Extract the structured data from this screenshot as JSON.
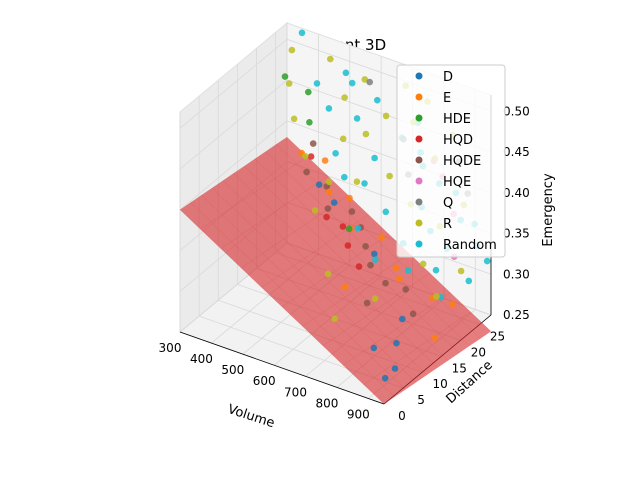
{
  "chart_data": {
    "type": "scatter",
    "subtype": "3d-scatter-with-surface",
    "title": "Pareto Front 3D",
    "xlabel": "Volume",
    "ylabel": "Distance",
    "zlabel": "Emergency",
    "xlim": [
      300,
      950
    ],
    "ylim": [
      0,
      28
    ],
    "zlim": [
      0.25,
      0.52
    ],
    "xticks": [
      300,
      400,
      500,
      600,
      700,
      800,
      900
    ],
    "yticks": [
      0,
      5,
      10,
      15,
      20,
      25
    ],
    "zticks": [
      0.25,
      0.3,
      0.35,
      0.4,
      0.45,
      0.5
    ],
    "grid": true,
    "legend_position": "top-right",
    "series": [
      {
        "name": "D",
        "color": "#1f77b4",
        "points": [
          [
            905,
            4,
            0.26
          ],
          [
            912,
            6,
            0.265
          ],
          [
            880,
            9,
            0.28
          ],
          [
            850,
            13,
            0.29
          ],
          [
            700,
            18,
            0.33
          ],
          [
            560,
            19,
            0.37
          ],
          [
            500,
            20,
            0.38
          ],
          [
            820,
            8,
            0.27
          ]
        ]
      },
      {
        "name": "E",
        "color": "#ff7f0e",
        "points": [
          [
            930,
            15,
            0.27
          ],
          [
            860,
            20,
            0.29
          ],
          [
            780,
            18,
            0.31
          ],
          [
            720,
            22,
            0.3
          ],
          [
            650,
            24,
            0.32
          ],
          [
            600,
            20,
            0.34
          ],
          [
            560,
            23,
            0.36
          ],
          [
            520,
            21,
            0.37
          ],
          [
            470,
            24,
            0.39
          ],
          [
            420,
            22,
            0.4
          ],
          [
            680,
            12,
            0.31
          ],
          [
            900,
            22,
            0.28
          ]
        ]
      },
      {
        "name": "HDE",
        "color": "#2ca02c",
        "points": [
          [
            330,
            25,
            0.47
          ],
          [
            380,
            27,
            0.45
          ],
          [
            420,
            24,
            0.43
          ],
          [
            620,
            18,
            0.35
          ]
        ]
      },
      {
        "name": "HQD",
        "color": "#d62728",
        "points": [
          [
            640,
            16,
            0.34
          ],
          [
            600,
            18,
            0.35
          ],
          [
            560,
            17,
            0.36
          ],
          [
            700,
            14,
            0.33
          ],
          [
            450,
            22,
            0.4
          ]
        ]
      },
      {
        "name": "HQDE",
        "color": "#8c564b",
        "points": [
          [
            800,
            18,
            0.3
          ],
          [
            760,
            16,
            0.31
          ],
          [
            700,
            17,
            0.32
          ],
          [
            660,
            19,
            0.33
          ],
          [
            620,
            21,
            0.34
          ],
          [
            580,
            22,
            0.35
          ],
          [
            540,
            19,
            0.36
          ],
          [
            500,
            22,
            0.37
          ],
          [
            460,
            20,
            0.39
          ],
          [
            420,
            25,
            0.4
          ],
          [
            750,
            12,
            0.3
          ],
          [
            860,
            15,
            0.29
          ]
        ]
      },
      {
        "name": "HQE",
        "color": "#e377c2",
        "points": [
          [
            880,
            24,
            0.38
          ],
          [
            820,
            26,
            0.41
          ],
          [
            780,
            27,
            0.42
          ],
          [
            930,
            20,
            0.35
          ]
        ]
      },
      {
        "name": "Q",
        "color": "#7f7f7f",
        "points": [
          [
            600,
            25,
            0.5
          ],
          [
            720,
            24,
            0.45
          ],
          [
            860,
            27,
            0.43
          ],
          [
            900,
            26,
            0.4
          ],
          [
            760,
            22,
            0.42
          ]
        ]
      },
      {
        "name": "R",
        "color": "#bcbd22",
        "points": [
          [
            340,
            26,
            0.5
          ],
          [
            380,
            22,
            0.48
          ],
          [
            450,
            27,
            0.5
          ],
          [
            520,
            25,
            0.47
          ],
          [
            560,
            27,
            0.49
          ],
          [
            600,
            24,
            0.44
          ],
          [
            640,
            26,
            0.46
          ],
          [
            700,
            22,
            0.41
          ],
          [
            740,
            25,
            0.47
          ],
          [
            780,
            21,
            0.39
          ],
          [
            820,
            24,
            0.44
          ],
          [
            860,
            22,
            0.37
          ],
          [
            900,
            25,
            0.39
          ],
          [
            940,
            21,
            0.33
          ],
          [
            480,
            18,
            0.42
          ],
          [
            560,
            14,
            0.38
          ],
          [
            650,
            10,
            0.33
          ],
          [
            720,
            6,
            0.3
          ],
          [
            800,
            10,
            0.32
          ],
          [
            880,
            16,
            0.35
          ],
          [
            620,
            20,
            0.4
          ],
          [
            540,
            23,
            0.43
          ],
          [
            420,
            20,
            0.45
          ],
          [
            760,
            27,
            0.49
          ],
          [
            840,
            27,
            0.46
          ],
          [
            910,
            17,
            0.31
          ],
          [
            690,
            27,
            0.5
          ],
          [
            580,
            16,
            0.41
          ]
        ]
      },
      {
        "name": "Random",
        "color": "#17becf",
        "points": [
          [
            360,
            27,
            0.52
          ],
          [
            420,
            26,
            0.47
          ],
          [
            470,
            25,
            0.45
          ],
          [
            520,
            27,
            0.48
          ],
          [
            560,
            25,
            0.45
          ],
          [
            600,
            27,
            0.47
          ],
          [
            640,
            23,
            0.42
          ],
          [
            690,
            26,
            0.44
          ],
          [
            730,
            27,
            0.46
          ],
          [
            770,
            25,
            0.42
          ],
          [
            810,
            26,
            0.4
          ],
          [
            850,
            27,
            0.39
          ],
          [
            890,
            25,
            0.37
          ],
          [
            930,
            26,
            0.34
          ],
          [
            940,
            23,
            0.31
          ],
          [
            900,
            19,
            0.3
          ],
          [
            860,
            21,
            0.32
          ],
          [
            820,
            17,
            0.33
          ],
          [
            780,
            19,
            0.35
          ],
          [
            740,
            15,
            0.34
          ],
          [
            700,
            21,
            0.37
          ],
          [
            660,
            17,
            0.36
          ],
          [
            620,
            22,
            0.39
          ],
          [
            580,
            20,
            0.4
          ],
          [
            540,
            21,
            0.42
          ],
          [
            500,
            27,
            0.49
          ],
          [
            950,
            27,
            0.32
          ],
          [
            910,
            27,
            0.36
          ],
          [
            870,
            23,
            0.34
          ],
          [
            830,
            22,
            0.36
          ],
          [
            790,
            23,
            0.38
          ],
          [
            750,
            26,
            0.43
          ]
        ]
      }
    ],
    "surface": {
      "color": "#d62728",
      "opacity": 0.6,
      "x": [
        300,
        950
      ],
      "y": [
        0,
        28
      ],
      "z": [
        [
          0.4,
          0.38
        ],
        [
          0.25,
          0.23
        ]
      ]
    }
  }
}
